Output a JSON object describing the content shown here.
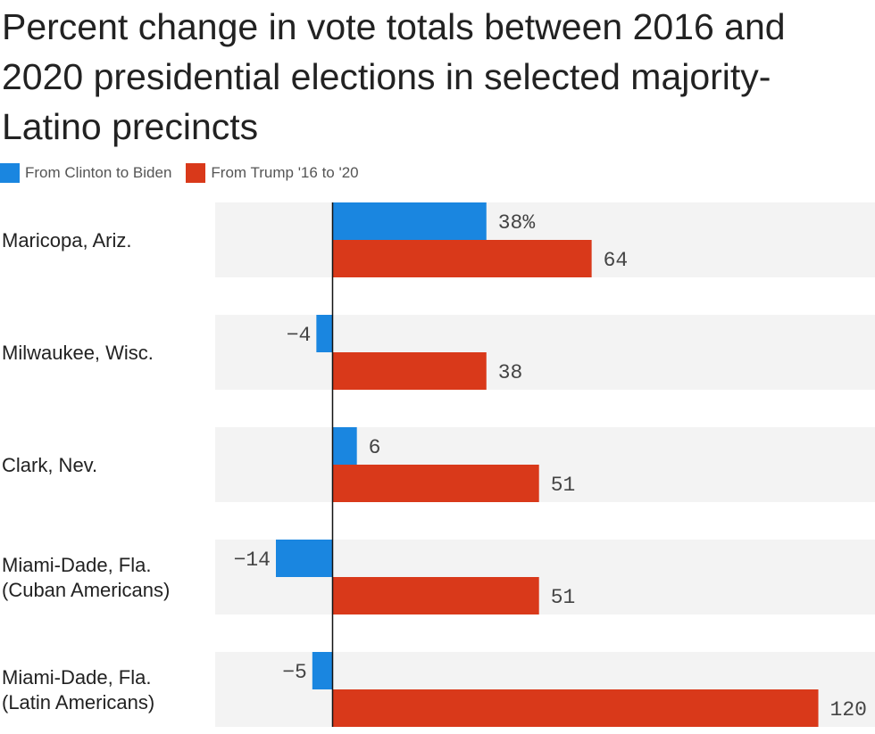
{
  "title": "Percent change in vote totals between 2016 and 2020 presidential elections in selected majority-Latino precincts",
  "colors": {
    "series1": "#1a86e0",
    "series2": "#d9391a",
    "band": "#f3f3f3",
    "axis": "#111111"
  },
  "chart_data": {
    "type": "bar",
    "orientation": "horizontal",
    "categories": [
      [
        "Maricopa, Ariz."
      ],
      [
        "Milwaukee, Wisc."
      ],
      [
        "Clark, Nev."
      ],
      [
        "Miami-Dade, Fla.",
        "(Cuban Americans)"
      ],
      [
        "Miami-Dade, Fla.",
        "(Latin Americans)"
      ]
    ],
    "series": [
      {
        "name": "From Clinton to Biden",
        "values": [
          38,
          -4,
          6,
          -14,
          -5
        ],
        "labels": [
          "38%",
          "−4",
          "6",
          "−14",
          "−5"
        ]
      },
      {
        "name": "From Trump '16 to '20",
        "values": [
          64,
          38,
          51,
          51,
          120
        ],
        "labels": [
          "64",
          "38",
          "51",
          "51",
          "120"
        ]
      }
    ],
    "xlim": [
      -29,
      134
    ],
    "legend": "top-left",
    "grid": false
  }
}
